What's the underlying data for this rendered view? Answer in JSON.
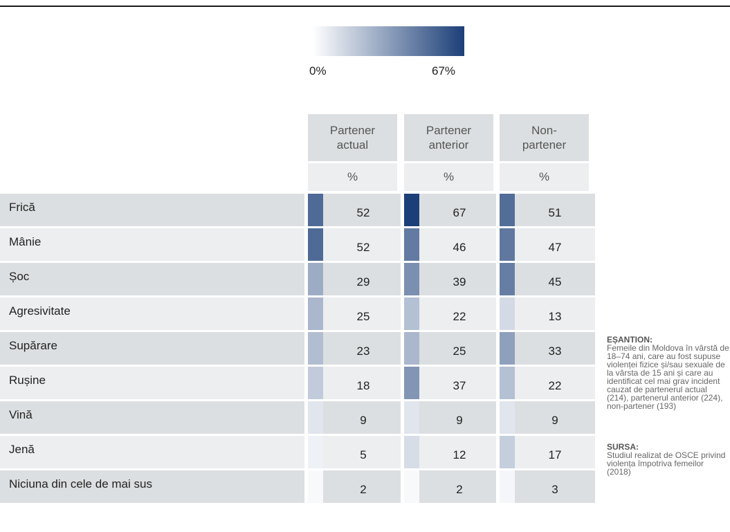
{
  "chart_data": {
    "type": "heatmap",
    "title": "",
    "color_scale": {
      "min_label": "0%",
      "max_label": "67%",
      "min_value": 0,
      "max_value": 67,
      "min_color": "#ffffff",
      "max_color": "#1c3f78"
    },
    "columns": [
      {
        "label": "Partener\nactual",
        "unit": "%"
      },
      {
        "label": "Partener\nanterior",
        "unit": "%"
      },
      {
        "label": "Non-\npartener",
        "unit": "%"
      }
    ],
    "rows": [
      {
        "label": "Frică",
        "values": [
          52,
          67,
          51
        ]
      },
      {
        "label": "Mânie",
        "values": [
          52,
          46,
          47
        ]
      },
      {
        "label": "Șoc",
        "values": [
          29,
          39,
          45
        ]
      },
      {
        "label": "Agresivitate",
        "values": [
          25,
          22,
          13
        ]
      },
      {
        "label": "Supărare",
        "values": [
          23,
          25,
          33
        ]
      },
      {
        "label": "Rușine",
        "values": [
          18,
          37,
          22
        ]
      },
      {
        "label": "Vină",
        "values": [
          9,
          9,
          9
        ]
      },
      {
        "label": "Jenă",
        "values": [
          5,
          12,
          17
        ]
      },
      {
        "label": "Niciuna din cele de mai sus",
        "values": [
          2,
          2,
          3
        ]
      }
    ]
  },
  "notes": {
    "sample_title": "EȘANTION:",
    "sample_text": "Femeile din Moldova în vârstă de 18–74 ani, care au fost supuse violenței fizice și/sau sexuale de la vârsta de 15 ani și care au identificat cel mai grav incident cauzat de partenerul actual (214), partenerul anterior (224), non-partener (193)",
    "source_title": "SURSA:",
    "source_text": "Studiul realizat de OSCE privind violența împotriva femeilor (2018)"
  }
}
